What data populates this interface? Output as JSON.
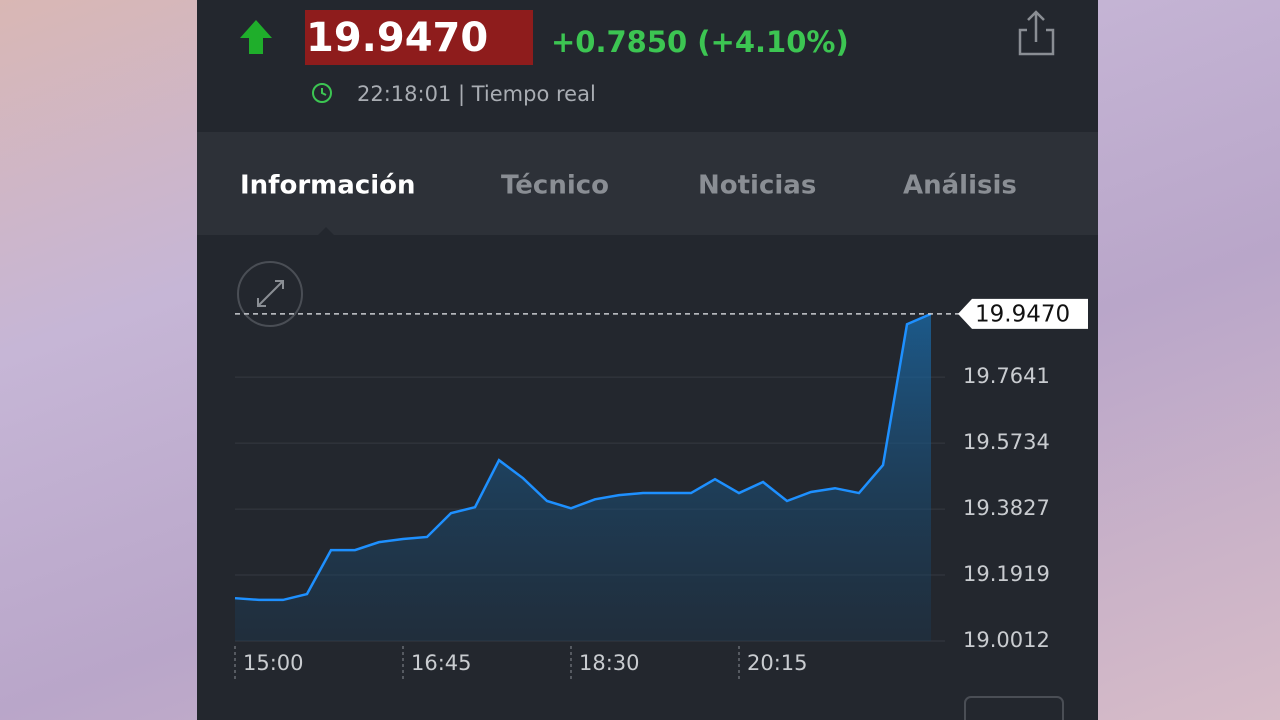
{
  "header": {
    "price": "19.9470",
    "change": "+0.7850 (+4.10%)",
    "time": "22:18:01 | Tiempo real"
  },
  "tabs": [
    "Información",
    "Técnico",
    "Noticias",
    "Análisis"
  ],
  "chart_data": {
    "type": "line",
    "x": [
      "15:00",
      null,
      null,
      null,
      null,
      null,
      null,
      "16:45",
      null,
      null,
      null,
      null,
      null,
      null,
      "18:30",
      null,
      null,
      null,
      null,
      null,
      null,
      "20:15",
      null,
      null,
      null,
      null,
      null,
      null,
      null,
      null
    ],
    "values": [
      19.125,
      19.12,
      19.12,
      19.137,
      19.264,
      19.264,
      19.287,
      19.296,
      19.302,
      19.371,
      19.388,
      19.524,
      19.472,
      19.406,
      19.385,
      19.411,
      19.423,
      19.429,
      19.429,
      19.429,
      19.469,
      19.429,
      19.461,
      19.406,
      19.432,
      19.443,
      19.429,
      19.51,
      19.917,
      19.947
    ],
    "color": "#1e90ff",
    "ylim": [
      19.0012,
      20.1
    ],
    "yticks": [
      19.0012,
      19.1919,
      19.3827,
      19.5734,
      19.7641
    ],
    "current": {
      "value": 19.947,
      "label": "19.9470"
    },
    "grid": true
  }
}
